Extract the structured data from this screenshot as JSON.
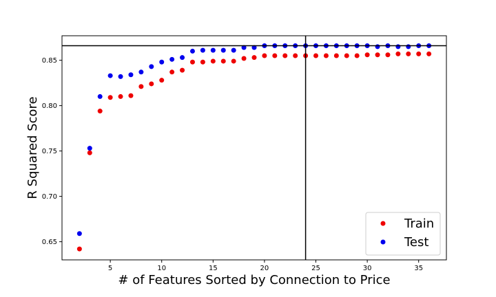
{
  "chart_data": {
    "type": "scatter",
    "xlabel": "# of Features Sorted by Connection to Price",
    "ylabel": "R Squared Score",
    "xlim": [
      0.3,
      37.7
    ],
    "ylim": [
      0.63,
      0.877
    ],
    "xticks": [
      5,
      10,
      15,
      20,
      25,
      30,
      35
    ],
    "yticks": [
      0.65,
      0.7,
      0.75,
      0.8,
      0.85
    ],
    "grid": false,
    "legend_position": "lower-right",
    "reference_lines": {
      "horizontal_y": 0.866,
      "vertical_x": 24
    },
    "x": [
      2,
      3,
      4,
      5,
      6,
      7,
      8,
      9,
      10,
      11,
      12,
      13,
      14,
      15,
      16,
      17,
      18,
      19,
      20,
      21,
      22,
      23,
      24,
      25,
      26,
      27,
      28,
      29,
      30,
      31,
      32,
      33,
      34,
      35,
      36
    ],
    "series": [
      {
        "name": "Train",
        "color": "#ee0000",
        "values": [
          0.642,
          0.748,
          0.794,
          0.809,
          0.81,
          0.811,
          0.821,
          0.824,
          0.828,
          0.837,
          0.839,
          0.848,
          0.848,
          0.849,
          0.849,
          0.849,
          0.852,
          0.853,
          0.855,
          0.855,
          0.855,
          0.855,
          0.855,
          0.855,
          0.855,
          0.855,
          0.855,
          0.855,
          0.856,
          0.856,
          0.856,
          0.857,
          0.857,
          0.857,
          0.857
        ]
      },
      {
        "name": "Test",
        "color": "#0000ee",
        "values": [
          0.659,
          0.753,
          0.81,
          0.833,
          0.832,
          0.834,
          0.837,
          0.843,
          0.848,
          0.851,
          0.853,
          0.86,
          0.861,
          0.861,
          0.861,
          0.861,
          0.864,
          0.864,
          0.866,
          0.866,
          0.866,
          0.866,
          0.866,
          0.866,
          0.866,
          0.866,
          0.866,
          0.866,
          0.866,
          0.865,
          0.866,
          0.865,
          0.865,
          0.866,
          0.866
        ]
      }
    ]
  }
}
